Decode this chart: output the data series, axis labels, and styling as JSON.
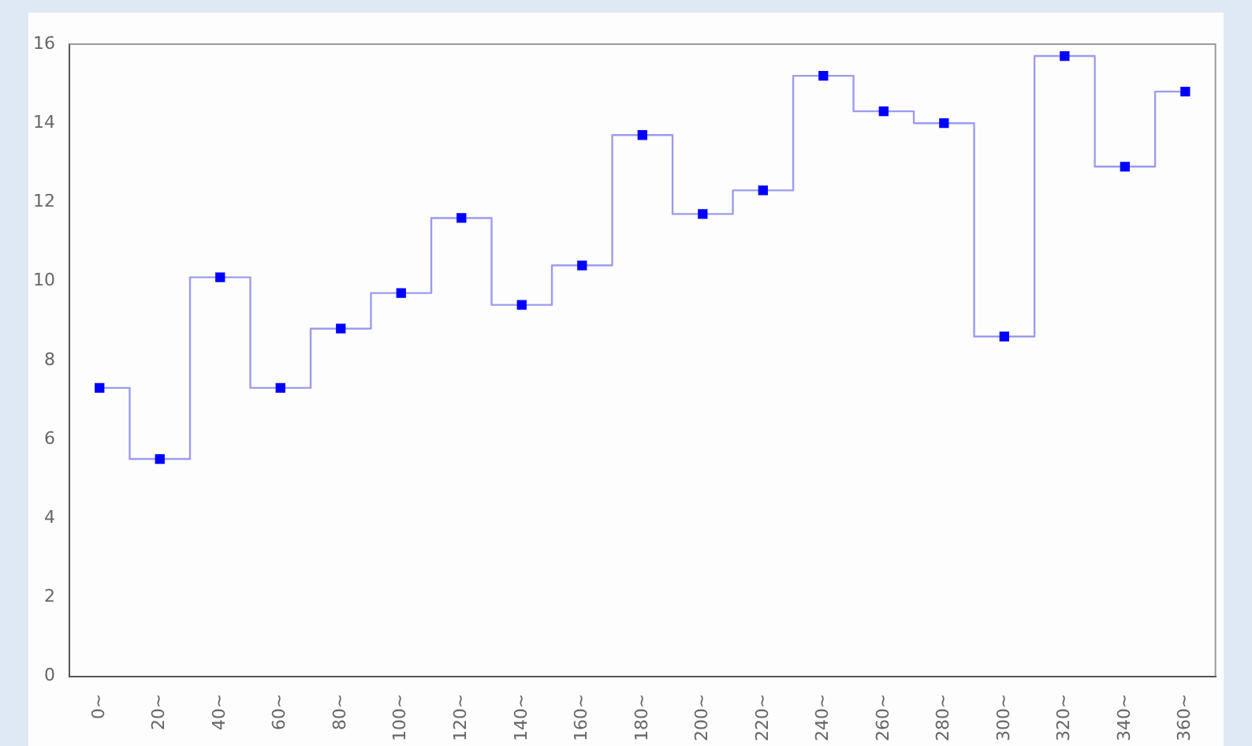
{
  "chart_data": {
    "type": "step",
    "categories": [
      "0~",
      "20~",
      "40~",
      "60~",
      "80~",
      "100~",
      "120~",
      "140~",
      "160~",
      "180~",
      "200~",
      "220~",
      "240~",
      "260~",
      "280~",
      "300~",
      "320~",
      "340~",
      "360~"
    ],
    "series": [
      {
        "color": "#0000ff",
        "values": [
          7.3,
          5.5,
          10.1,
          7.3,
          8.8,
          9.7,
          11.6,
          9.4,
          10.4,
          13.7,
          11.7,
          12.3,
          15.2,
          14.3,
          14.0,
          8.6,
          15.7,
          12.9,
          14.8
        ]
      }
    ],
    "ylim": [
      0,
      16
    ],
    "yticks": [
      0,
      2,
      4,
      6,
      8,
      10,
      12,
      14,
      16
    ],
    "grid": false,
    "legend": false,
    "marker": "square",
    "line_style": "solid"
  }
}
